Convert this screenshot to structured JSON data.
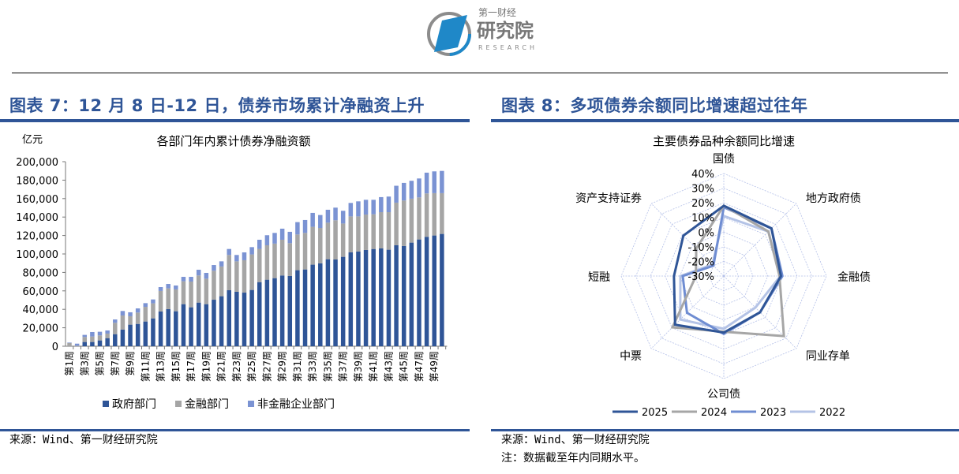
{
  "header": {
    "logo_text_top": "第一财经",
    "logo_text_main": "研究院",
    "logo_text_sub": "RESEARCH"
  },
  "figure7": {
    "title": "图表 7：12 月 8 日-12 日，债券市场累计净融资上升",
    "source_label": "来源：",
    "source": "Wind、第一财经研究院"
  },
  "figure8": {
    "title": "图表 8：多项债券余额同比增速超过往年",
    "source_label": "来源：",
    "source": "Wind、第一财经研究院",
    "note_label": "注：",
    "note": "数据截至年内同期水平。"
  },
  "chart_data": [
    {
      "type": "bar",
      "stacked": true,
      "title": "各部门年内累计债券净融资额",
      "ylabel": "亿元",
      "ylim": [
        0,
        200000
      ],
      "yticks": [
        "0",
        "20,000",
        "40,000",
        "60,000",
        "80,000",
        "100,000",
        "120,000",
        "140,000",
        "160,000",
        "180,000",
        "200,000"
      ],
      "tick_labels": [
        "第1周",
        "第3周",
        "第5周",
        "第7周",
        "第9周",
        "第11周",
        "第13周",
        "第15周",
        "第17周",
        "第19周",
        "第21周",
        "第23周",
        "第25周",
        "第27周",
        "第29周",
        "第31周",
        "第33周",
        "第35周",
        "第37周",
        "第39周",
        "第41周",
        "第43周",
        "第45周",
        "第47周",
        "第49周"
      ],
      "weeks": 50,
      "legend_position": "bottom",
      "grid": false,
      "series": [
        {
          "name": "政府部门",
          "color": "#2F5597",
          "values": [
            0,
            0,
            4600,
            4600,
            6300,
            8800,
            13100,
            18000,
            23400,
            24200,
            26800,
            30200,
            37600,
            40200,
            37900,
            45600,
            42200,
            47300,
            45600,
            50400,
            54200,
            60700,
            59000,
            58100,
            61000,
            69500,
            72100,
            73800,
            76700,
            76100,
            82400,
            83200,
            88400,
            89800,
            94300,
            94000,
            96900,
            101700,
            102600,
            104300,
            105400,
            106000,
            104600,
            109400,
            108600,
            112300,
            115700,
            118600,
            120000,
            121700
          ]
        },
        {
          "name": "金融部门",
          "color": "#A5A5A5",
          "values": [
            3500,
            500,
            5400,
            5900,
            5400,
            4900,
            12300,
            15300,
            9100,
            12300,
            15900,
            16300,
            22300,
            22500,
            23700,
            24800,
            27900,
            29400,
            27600,
            31400,
            32200,
            38200,
            33000,
            35100,
            38500,
            36000,
            37300,
            37400,
            38700,
            35600,
            38700,
            39600,
            41000,
            38400,
            39600,
            42500,
            36100,
            39000,
            38100,
            38400,
            37600,
            39300,
            40700,
            46200,
            49300,
            47600,
            45600,
            47000,
            45900,
            44200
          ]
        },
        {
          "name": "非金融企业部门",
          "color": "#7B93D3",
          "values": [
            500,
            2300,
            2300,
            4900,
            4000,
            3400,
            3600,
            4900,
            4300,
            4500,
            4000,
            4200,
            4200,
            4800,
            4200,
            4800,
            5100,
            6200,
            6300,
            6200,
            5600,
            6500,
            6900,
            8500,
            7900,
            9900,
            10900,
            11600,
            12000,
            12300,
            13400,
            14000,
            15100,
            14000,
            14000,
            13700,
            13800,
            14600,
            16300,
            16000,
            15700,
            16300,
            16900,
            18300,
            19100,
            19400,
            20500,
            22500,
            23600,
            24100
          ]
        }
      ]
    },
    {
      "type": "radar",
      "title": "主要债券品种余额同比增速",
      "categories": [
        "国债",
        "地方政府债",
        "金融债",
        "同业存单",
        "公司债",
        "中票",
        "短融",
        "资产支持证券"
      ],
      "rlim": [
        -30,
        40
      ],
      "rticks": [
        "40%",
        "30%",
        "20%",
        "10%",
        "0%",
        "-10%",
        "-20%",
        "-30%"
      ],
      "legend_position": "bottom",
      "series": [
        {
          "name": "2025",
          "color": "#2F5597",
          "values": [
            18,
            16,
            9,
            5,
            8.6,
            17,
            4,
            9
          ]
        },
        {
          "name": "2024",
          "color": "#A6A6A6",
          "values": [
            18,
            13,
            8,
            28,
            8,
            19.5,
            -11,
            -3.4
          ]
        },
        {
          "name": "2023",
          "color": "#6F8DD2",
          "values": [
            17,
            16,
            10,
            5,
            9.5,
            5.5,
            -2,
            -20
          ]
        },
        {
          "name": "2022",
          "color": "#B4C3E6",
          "values": [
            11,
            13,
            8.6,
            0.5,
            6,
            12,
            -0.4,
            -19
          ]
        }
      ]
    }
  ]
}
